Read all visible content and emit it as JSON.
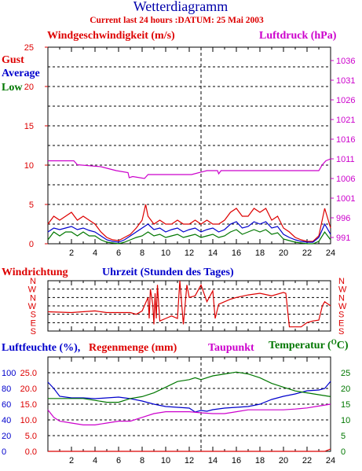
{
  "header": {
    "title": "Wetterdiagramm",
    "subtitle": "Current last 24 hours :DATUM: 25 Mai 2003"
  },
  "colors": {
    "red": "#dd0000",
    "blue": "#0000cc",
    "green": "#007700",
    "magenta": "#cc00cc",
    "black": "#000000",
    "grid": "#000000"
  },
  "chart_data": [
    {
      "type": "line",
      "labels": {
        "left_title": "Windgeschwindigkeit (m/s)",
        "right_title": "Luftdruck (hPa)",
        "legend": [
          "Gust",
          "Average",
          "Low"
        ]
      },
      "x_ticks": [
        "2",
        "4",
        "6",
        "8",
        "10",
        "12",
        "14",
        "16",
        "18",
        "20",
        "22",
        "24"
      ],
      "y_left_ticks": [
        "0",
        "5",
        "10",
        "15",
        "20",
        "25"
      ],
      "y_right_ticks": [
        "991",
        "996",
        "1001",
        "1006",
        "1011",
        "1016",
        "1021",
        "1026",
        "1031",
        "1036"
      ],
      "ylim_left": [
        0,
        25
      ],
      "ylim_right": [
        989.4,
        1039.4
      ],
      "grid": true,
      "series": [
        {
          "name": "Luftdruck",
          "axis": "right",
          "color": "magenta",
          "x": [
            0,
            2.2,
            2.5,
            4.5,
            5.8,
            6.8,
            6.9,
            7.2,
            8.2,
            8.5,
            9.0,
            12.2,
            13.5,
            14.4,
            14.5,
            14.7,
            15.0,
            16.0,
            22.5,
            23.0,
            23.3,
            23.6,
            24
          ],
          "y": [
            1010.5,
            1010.5,
            1009.5,
            1009,
            1008,
            1007.5,
            1006.2,
            1006.5,
            1006,
            1007,
            1007,
            1007,
            1008,
            1008,
            1007.2,
            1008,
            1008,
            1008,
            1008,
            1008,
            1009.5,
            1010.5,
            1011
          ]
        },
        {
          "name": "Gust",
          "axis": "left",
          "color": "red",
          "x": [
            0,
            0.5,
            1,
            1.5,
            2,
            2.5,
            3,
            3.5,
            4,
            4.5,
            5,
            5.5,
            6,
            6.5,
            7,
            7.5,
            8,
            8.3,
            8.5,
            9,
            9.5,
            10,
            10.5,
            11,
            11.5,
            12,
            12.5,
            13,
            13.5,
            14,
            14.5,
            15,
            15.5,
            16,
            16.5,
            17,
            17.5,
            18,
            18.5,
            19,
            19.5,
            20,
            20.5,
            21,
            21.5,
            22,
            22.5,
            23,
            23.5,
            24
          ],
          "y": [
            2.5,
            3.5,
            3,
            3.5,
            4,
            3,
            3.5,
            3,
            2.5,
            1.5,
            0.8,
            0.5,
            0.4,
            0.8,
            1.2,
            2,
            3,
            5,
            3.5,
            2.5,
            3,
            2.5,
            2.5,
            3,
            2.5,
            2.5,
            3,
            2.5,
            3,
            2.5,
            2.5,
            3,
            4,
            4.5,
            3.5,
            3.5,
            4.5,
            4,
            4.5,
            3,
            3.5,
            2,
            1.5,
            0.8,
            0.5,
            0.3,
            0.3,
            1,
            4.5,
            2
          ]
        },
        {
          "name": "Average",
          "axis": "left",
          "color": "blue",
          "x": [
            0,
            0.5,
            1,
            1.5,
            2,
            2.5,
            3,
            3.5,
            4,
            4.5,
            5,
            5.5,
            6,
            6.5,
            7,
            7.5,
            8,
            8.5,
            9,
            9.5,
            10,
            10.5,
            11,
            11.5,
            12,
            12.5,
            13,
            13.5,
            14,
            14.5,
            15,
            15.5,
            16,
            16.5,
            17,
            17.5,
            18,
            18.5,
            19,
            19.5,
            20,
            20.5,
            21,
            21.5,
            22,
            22.5,
            23,
            23.5,
            24
          ],
          "y": [
            1.5,
            2,
            1.8,
            2,
            2.2,
            1.8,
            2,
            1.7,
            1.5,
            1,
            0.5,
            0.3,
            0.2,
            0.5,
            1,
            1.5,
            2,
            2.5,
            1.8,
            2,
            1.5,
            1.8,
            2,
            1.5,
            1.8,
            2,
            1.5,
            1.8,
            2,
            1.5,
            1.8,
            2.5,
            2.8,
            2,
            2.2,
            2.8,
            2.5,
            2.8,
            2,
            2.2,
            1.2,
            0.8,
            0.5,
            0.3,
            0.2,
            0.2,
            0.8,
            2.5,
            1.2
          ]
        },
        {
          "name": "Low",
          "axis": "left",
          "color": "green",
          "x": [
            0,
            0.5,
            1,
            1.5,
            2,
            2.5,
            3,
            3.5,
            4,
            4.5,
            5,
            5.5,
            6,
            6.5,
            7,
            7.5,
            8,
            8.5,
            9,
            9.5,
            10,
            10.5,
            11,
            11.5,
            12,
            12.5,
            13,
            13.5,
            14,
            14.5,
            15,
            15.5,
            16,
            16.5,
            17,
            17.5,
            18,
            18.5,
            19,
            19.5,
            20,
            20.5,
            21,
            21.5,
            22,
            22.5,
            23,
            23.5,
            24
          ],
          "y": [
            0.5,
            1.5,
            1,
            1.5,
            1.5,
            1,
            1.5,
            1,
            1,
            0.5,
            0.2,
            0.1,
            0,
            0.2,
            0.5,
            0.8,
            1,
            1.5,
            1,
            1.2,
            0.8,
            1,
            1.2,
            0.8,
            1,
            1.2,
            0.8,
            1,
            1.2,
            0.8,
            1,
            1.5,
            1.8,
            1.2,
            1.5,
            1.8,
            1.5,
            1.8,
            1.2,
            1.4,
            0.6,
            0.4,
            0.2,
            0.1,
            0,
            0,
            0.3,
            1.5,
            0.5
          ]
        }
      ]
    },
    {
      "type": "line",
      "labels": {
        "left_title": "Windrichtung",
        "center_title": "Uhrzeit (Stunden des Tages)"
      },
      "y_ticks": [
        "S",
        "E",
        "S",
        "W",
        "N",
        "W",
        "N"
      ],
      "ylim": [
        0,
        6
      ],
      "grid": true,
      "series": [
        {
          "name": "Windrichtung",
          "color": "red",
          "x": [
            0,
            2,
            4,
            4.5,
            5,
            6,
            7,
            7.5,
            8,
            8.5,
            8.6,
            8.7,
            8.9,
            9.0,
            9.1,
            9.2,
            9.3,
            9.5,
            10,
            10.5,
            11,
            11.2,
            11.5,
            11.8,
            12,
            12.5,
            13,
            13.5,
            14,
            14.2,
            14.5,
            15,
            15.5,
            16,
            17,
            18,
            19,
            20,
            20.2,
            20.5,
            21,
            21.5,
            22,
            22.5,
            23,
            23.3,
            23.5,
            24
          ],
          "y": [
            2.3,
            2.2,
            2.4,
            2.3,
            2.2,
            2.2,
            2.2,
            2,
            2.4,
            4,
            1.5,
            5,
            3.2,
            0.8,
            4.5,
            1.5,
            5.5,
            1.2,
            1.5,
            1.8,
            1.5,
            6,
            0.8,
            5.5,
            4,
            4.2,
            5.5,
            3.5,
            4.8,
            1.5,
            3.2,
            3.5,
            3.8,
            4,
            4.3,
            4.5,
            4.2,
            4.6,
            4.5,
            0.5,
            0.5,
            0.5,
            1,
            1.2,
            1.3,
            3,
            3.5,
            3
          ]
        }
      ]
    },
    {
      "type": "line",
      "labels": {
        "left_title": "Luftfeuchte (%),",
        "left_title2": "Regenmenge (mm)",
        "center_title": "Taupunkt",
        "right_title": "Temperatur (",
        "right_title_unit": "O",
        "right_title_end": "C)"
      },
      "x_ticks": [
        "2",
        "4",
        "6",
        "8",
        "10",
        "12",
        "14",
        "16",
        "18",
        "20",
        "22",
        "24"
      ],
      "y_left_outer_ticks": [
        "0",
        "20",
        "40",
        "60",
        "80",
        "100"
      ],
      "y_left_inner_ticks": [
        "0.0",
        "5.0",
        "10.0",
        "15.0",
        "20.0",
        "25.0"
      ],
      "y_right_ticks": [
        "0",
        "5",
        "10",
        "15",
        "20",
        "25"
      ],
      "ylim_left": [
        0,
        120
      ],
      "ylim_right": [
        0,
        25
      ],
      "grid": true,
      "series": [
        {
          "name": "Luftfeuchte",
          "axis": "left",
          "color": "blue",
          "x": [
            0,
            0.5,
            1,
            2,
            3,
            4,
            5,
            6,
            7,
            8,
            9,
            10,
            11,
            12,
            12.5,
            13,
            13.5,
            14,
            15,
            16,
            17,
            18,
            19,
            20,
            21,
            22,
            23,
            23.5,
            24
          ],
          "y": [
            88,
            80,
            70,
            68,
            68,
            67,
            68,
            69,
            67,
            64,
            60,
            57,
            56,
            55,
            50,
            52,
            51,
            53,
            55,
            56,
            57,
            60,
            66,
            70,
            73,
            77,
            78,
            80,
            89
          ]
        },
        {
          "name": "Temperatur",
          "axis": "right",
          "color": "green",
          "x": [
            0,
            1,
            2,
            3,
            4,
            5,
            6,
            7,
            8,
            9,
            10,
            11,
            12,
            12.5,
            13,
            14,
            15,
            16,
            17,
            18,
            19,
            20,
            21,
            22,
            23,
            24
          ],
          "y": [
            14,
            14,
            14,
            14,
            13.5,
            13,
            13,
            14,
            14.5,
            15.5,
            17,
            18.5,
            19,
            19.5,
            19,
            20,
            20.5,
            21,
            20.5,
            19.5,
            18,
            17,
            16,
            15.5,
            15,
            14.5
          ]
        },
        {
          "name": "Taupunkt",
          "axis": "right",
          "color": "magenta",
          "x": [
            0,
            0.5,
            1,
            2,
            3,
            4,
            5,
            6,
            7,
            8,
            9,
            10,
            11,
            12,
            13,
            14,
            15,
            16,
            17,
            18,
            19,
            20,
            21,
            22,
            23,
            24
          ],
          "y": [
            11,
            9,
            8,
            7.5,
            7,
            7,
            7.5,
            8,
            8,
            9,
            10,
            10.5,
            10.5,
            10.5,
            10.2,
            10,
            10,
            10.5,
            11,
            11,
            11,
            11,
            11.2,
            11.5,
            12,
            12.5
          ]
        },
        {
          "name": "Regenmenge",
          "axis": "left",
          "color": "red",
          "x": [
            0,
            23.5,
            24
          ],
          "y": [
            0,
            0,
            3
          ]
        }
      ]
    }
  ]
}
